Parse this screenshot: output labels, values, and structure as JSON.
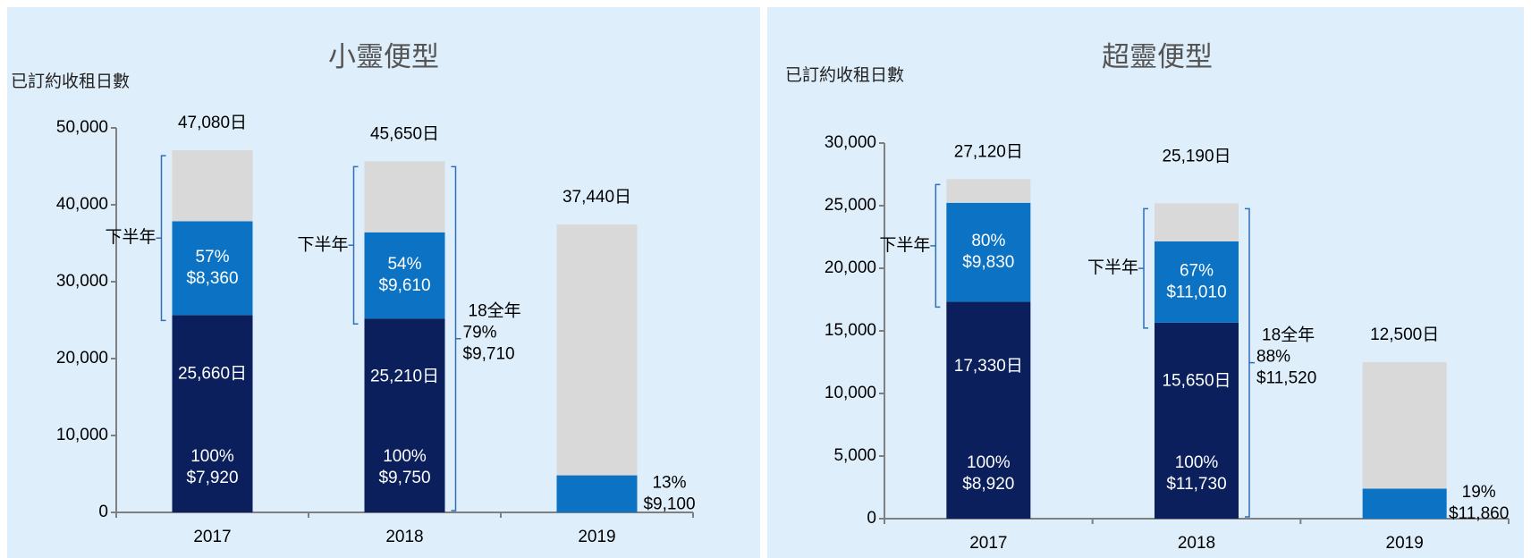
{
  "chart_data": [
    {
      "type": "stacked_bar",
      "title": "小靈便型",
      "y_label": "已訂約收租日數",
      "categories": [
        "2017",
        "2018",
        "2019"
      ],
      "ylim": [
        0,
        50000
      ],
      "yticks": [
        0,
        {
          "value": 10000,
          "label": "10,000"
        },
        {
          "value": 20000,
          "label": "20,000"
        },
        {
          "value": 30000,
          "label": "30,000"
        },
        {
          "value": 40000,
          "label": "40,000"
        },
        {
          "value": 50000,
          "label": "50,000"
        }
      ],
      "series": [
        {
          "color": "#0a1f5c",
          "values": [
            25660,
            25210,
            null
          ],
          "value_labels": [
            "25,660日",
            "25,210日",
            null
          ],
          "rate_labels": [
            [
              "100%",
              "$7,920"
            ],
            [
              "100%",
              "$9,750"
            ],
            null
          ]
        },
        {
          "color": "#0b72c4",
          "values": [
            12200,
            11210,
            4820
          ],
          "rate_labels": [
            [
              "57%",
              "$8,360"
            ],
            [
              "54%",
              "$9,610"
            ],
            [
              "13%",
              "$9,100"
            ]
          ]
        },
        {
          "color": "#d9d9d9",
          "values": [
            9220,
            9230,
            32620
          ]
        }
      ],
      "totals": [
        47080,
        45650,
        37440
      ],
      "total_labels": [
        "47,080日",
        "45,650日",
        "37,440日"
      ],
      "half_year_label": "下半年",
      "full_year": {
        "label": "18全年",
        "rate": "79%",
        "price": "$9,710"
      }
    },
    {
      "type": "stacked_bar",
      "title": "超靈便型",
      "y_label": "已訂約收租日數",
      "categories": [
        "2017",
        "2018",
        "2019"
      ],
      "ylim": [
        0,
        30000
      ],
      "yticks": [
        0,
        {
          "value": 5000,
          "label": "5,000"
        },
        {
          "value": 10000,
          "label": "10,000"
        },
        {
          "value": 15000,
          "label": "15,000"
        },
        {
          "value": 20000,
          "label": "20,000"
        },
        {
          "value": 25000,
          "label": "25,000"
        },
        {
          "value": 30000,
          "label": "30,000"
        }
      ],
      "series": [
        {
          "color": "#0a1f5c",
          "values": [
            17330,
            15650,
            null
          ],
          "value_labels": [
            "17,330日",
            "15,650日",
            null
          ],
          "rate_labels": [
            [
              "100%",
              "$8,920"
            ],
            [
              "100%",
              "$11,730"
            ],
            null
          ]
        },
        {
          "color": "#0b72c4",
          "values": [
            7900,
            6500,
            2400
          ],
          "rate_labels": [
            [
              "80%",
              "$9,830"
            ],
            [
              "67%",
              "$11,010"
            ],
            [
              "19%",
              "$11,860"
            ]
          ]
        },
        {
          "color": "#d9d9d9",
          "values": [
            1890,
            3040,
            10100
          ]
        }
      ],
      "totals": [
        27120,
        25190,
        12500
      ],
      "total_labels": [
        "27,120日",
        "25,190日",
        "12,500日"
      ],
      "half_year_label": "下半年",
      "full_year": {
        "label": "18全年",
        "rate": "88%",
        "price": "$11,520"
      }
    }
  ]
}
